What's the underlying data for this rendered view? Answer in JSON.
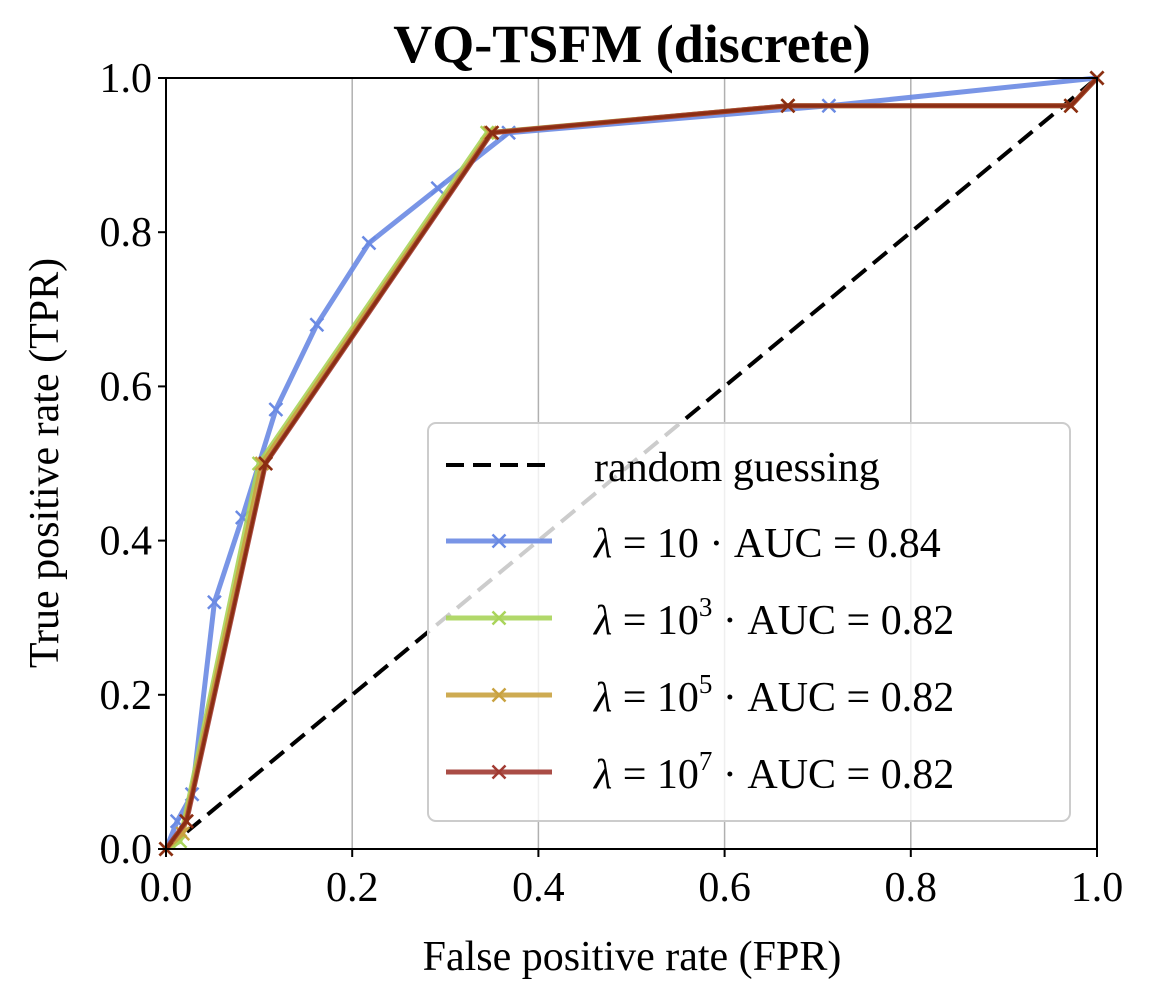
{
  "chart_data": {
    "type": "line",
    "title": "VQ-TSFM (discrete)",
    "xlabel": "False positive rate (FPR)",
    "ylabel": "True positive rate (TPR)",
    "xlim": [
      0,
      1
    ],
    "ylim": [
      0,
      1
    ],
    "xticks": [
      0.0,
      0.2,
      0.4,
      0.6,
      0.8,
      1.0
    ],
    "yticks": [
      0.0,
      0.2,
      0.4,
      0.6,
      0.8,
      1.0
    ],
    "xtick_labels": [
      "0.0",
      "0.2",
      "0.4",
      "0.6",
      "0.8",
      "1.0"
    ],
    "ytick_labels": [
      "0.0",
      "0.2",
      "0.4",
      "0.6",
      "0.8",
      "1.0"
    ],
    "grid": "vertical",
    "legend_position": "lower-right",
    "reference_line": {
      "label": "random guessing",
      "x": [
        0,
        1
      ],
      "y": [
        0,
        1
      ],
      "color": "#000000",
      "style": "dashed"
    },
    "series": [
      {
        "lambda_base": "10",
        "lambda_exp": "",
        "auc_text": "AUC = 0.84",
        "color": "#6a8ae3",
        "x": [
          0,
          0.012,
          0.028,
          0.052,
          0.082,
          0.118,
          0.162,
          0.218,
          0.292,
          0.368,
          0.712,
          1.0
        ],
        "y": [
          0,
          0.036,
          0.071,
          0.32,
          0.43,
          0.57,
          0.68,
          0.786,
          0.857,
          0.929,
          0.964,
          1.0
        ]
      },
      {
        "lambda_base": "10",
        "lambda_exp": "3",
        "auc_text": "AUC = 0.82",
        "color": "#a9d45a",
        "x": [
          0,
          0.015,
          0.1,
          0.345,
          0.668,
          0.972,
          1.0
        ],
        "y": [
          0,
          0.01,
          0.5,
          0.929,
          0.964,
          0.964,
          1.0
        ]
      },
      {
        "lambda_base": "10",
        "lambda_exp": "5",
        "auc_text": "AUC = 0.82",
        "color": "#c9a23f",
        "x": [
          0,
          0.018,
          0.103,
          0.348,
          0.668,
          0.972,
          1.0
        ],
        "y": [
          0,
          0.02,
          0.5,
          0.929,
          0.964,
          0.964,
          1.0
        ]
      },
      {
        "lambda_base": "10",
        "lambda_exp": "7",
        "auc_text": "AUC = 0.82",
        "color": "#a13a32",
        "x": [
          0,
          0.022,
          0.107,
          0.35,
          0.668,
          0.972,
          1.0
        ],
        "y": [
          0,
          0.036,
          0.5,
          0.929,
          0.964,
          0.964,
          1.0
        ]
      }
    ],
    "overlay_series": {
      "color": "#8b2e12",
      "x": [
        0,
        0.022,
        0.107,
        0.35,
        0.668,
        0.972,
        1.0
      ],
      "y": [
        0,
        0.036,
        0.5,
        0.929,
        0.964,
        0.964,
        1.0
      ]
    }
  }
}
